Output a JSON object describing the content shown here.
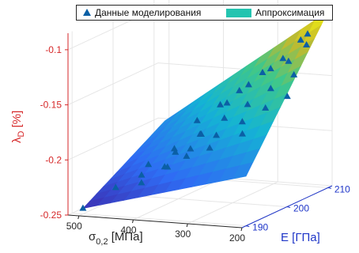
{
  "chart_data": {
    "type": "surface3d",
    "legend": {
      "placement": "top",
      "entries": [
        {
          "label": "Данные моделирования",
          "marker": "triangle",
          "color": "#0b5fa5"
        },
        {
          "label": "Аппроксимация",
          "marker": "surface",
          "color": "#24c4b0"
        }
      ]
    },
    "axes": {
      "x": {
        "label_main": "σ",
        "label_sub": "0,2",
        "label_unit": " [МПа]",
        "ticks": [
          "200",
          "300",
          "400",
          "500"
        ],
        "range": [
          200,
          520
        ]
      },
      "y": {
        "label": "E [ГПа]",
        "ticks": [
          "190",
          "200",
          "210"
        ],
        "range": [
          189,
          211
        ],
        "color": "#1f36c8"
      },
      "z": {
        "label_main": "λ",
        "label_sub": "D",
        "label_unit": " [%]",
        "ticks": [
          "-0.25",
          "-0.2",
          "-0.15",
          "-0.1"
        ],
        "range": [
          -0.25,
          -0.085
        ],
        "color": "#d62728"
      }
    },
    "grid": true,
    "surface_colormap": "parula",
    "surface_corners": [
      {
        "s": 200,
        "E": 190,
        "lambda": -0.205
      },
      {
        "s": 200,
        "E": 210,
        "lambda": -0.09
      },
      {
        "s": 500,
        "E": 190,
        "lambda": -0.245
      },
      {
        "s": 500,
        "E": 210,
        "lambda": -0.2
      }
    ],
    "points": [
      {
        "s": 500,
        "E": 190,
        "lambda": -0.245
      },
      {
        "s": 470,
        "E": 194,
        "lambda": -0.232
      },
      {
        "s": 445,
        "E": 197,
        "lambda": -0.225
      },
      {
        "s": 420,
        "E": 200,
        "lambda": -0.222
      },
      {
        "s": 400,
        "E": 202,
        "lambda": -0.215
      },
      {
        "s": 380,
        "E": 205,
        "lambda": -0.212
      },
      {
        "s": 350,
        "E": 209,
        "lambda": -0.205
      },
      {
        "s": 470,
        "E": 202,
        "lambda": -0.225
      },
      {
        "s": 445,
        "E": 205,
        "lambda": -0.215
      },
      {
        "s": 420,
        "E": 208,
        "lambda": -0.206
      },
      {
        "s": 400,
        "E": 191,
        "lambda": -0.22
      },
      {
        "s": 380,
        "E": 194,
        "lambda": -0.21
      },
      {
        "s": 355,
        "E": 197,
        "lambda": -0.198
      },
      {
        "s": 330,
        "E": 200,
        "lambda": -0.19
      },
      {
        "s": 305,
        "E": 203,
        "lambda": -0.182
      },
      {
        "s": 330,
        "E": 190,
        "lambda": -0.188
      },
      {
        "s": 305,
        "E": 193,
        "lambda": -0.176
      },
      {
        "s": 285,
        "E": 196,
        "lambda": -0.166
      },
      {
        "s": 265,
        "E": 199,
        "lambda": -0.158
      },
      {
        "s": 245,
        "E": 202,
        "lambda": -0.148
      },
      {
        "s": 225,
        "E": 205,
        "lambda": -0.14
      },
      {
        "s": 300,
        "E": 208,
        "lambda": -0.178
      },
      {
        "s": 275,
        "E": 210,
        "lambda": -0.17
      },
      {
        "s": 290,
        "E": 190,
        "lambda": -0.158
      },
      {
        "s": 270,
        "E": 193,
        "lambda": -0.148
      },
      {
        "s": 250,
        "E": 195,
        "lambda": -0.138
      },
      {
        "s": 230,
        "E": 198,
        "lambda": -0.126
      },
      {
        "s": 215,
        "E": 201,
        "lambda": -0.118
      },
      {
        "s": 250,
        "E": 207,
        "lambda": -0.132
      },
      {
        "s": 232,
        "E": 209,
        "lambda": -0.12
      },
      {
        "s": 235,
        "E": 190,
        "lambda": -0.14
      },
      {
        "s": 218,
        "E": 193,
        "lambda": -0.128
      },
      {
        "s": 200,
        "E": 196,
        "lambda": -0.118
      },
      {
        "s": 205,
        "E": 204,
        "lambda": -0.106
      },
      {
        "s": 215,
        "E": 207,
        "lambda": -0.106
      },
      {
        "s": 200,
        "E": 210,
        "lambda": -0.09
      }
    ]
  }
}
